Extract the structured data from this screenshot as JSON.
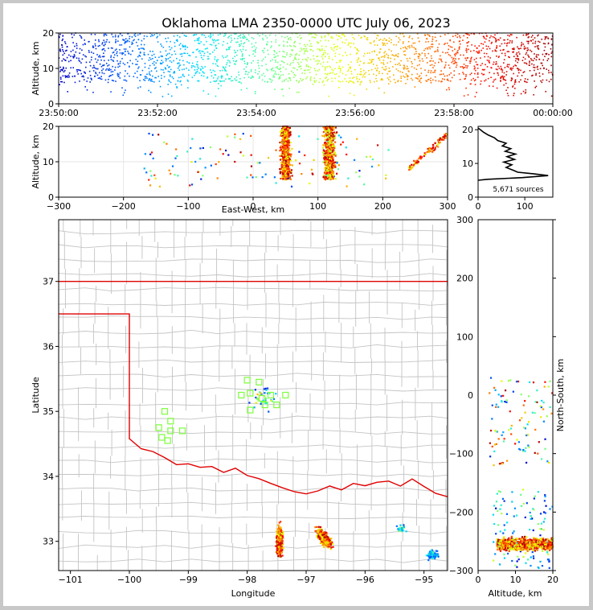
{
  "chart_data": [
    {
      "type": "scatter",
      "panel": "altitude-time",
      "title": "Oklahoma LMA 2350-0000 UTC July 06, 2023",
      "ylabel": "Altitude, km",
      "xlabel": "",
      "x_ticks": [
        "23:50:00",
        "23:52:00",
        "23:54:00",
        "23:56:00",
        "23:58:00",
        "00:00:00"
      ],
      "y_ticks": [
        "0",
        "10",
        "20"
      ],
      "xlim": [
        "23:50:00",
        "00:00:00"
      ],
      "ylim": [
        0,
        20
      ],
      "color_by": "time",
      "colormap": [
        "#0000c8",
        "#0060ff",
        "#00e0ff",
        "#60ff90",
        "#e8ff00",
        "#ff9000",
        "#ff1000",
        "#a00000"
      ],
      "altitude_band_km": [
        5,
        20
      ]
    },
    {
      "type": "scatter",
      "panel": "altitude-east-west",
      "xlabel": "East-West, km",
      "ylabel": "Altitude, km",
      "x_ticks": [
        "−300",
        "−200",
        "−100",
        "0",
        "100",
        "200",
        "300"
      ],
      "y_ticks": [
        "0",
        "10",
        "20"
      ],
      "xlim": [
        -300,
        300
      ],
      "ylim": [
        0,
        20
      ],
      "clusters_ew_km": [
        {
          "x_center": 50,
          "x_width": 12,
          "alt": [
            5,
            20
          ],
          "weight": 0.4
        },
        {
          "x_center": 118,
          "x_width": 14,
          "alt": [
            5,
            20
          ],
          "weight": 0.4
        },
        {
          "x_center": 280,
          "x_width": 25,
          "alt": [
            8,
            18
          ],
          "weight": 0.1
        }
      ]
    },
    {
      "type": "line",
      "panel": "altitude-histogram",
      "annotation": "5,671 sources",
      "x_ticks": [
        "0",
        "100"
      ],
      "y_ticks": [
        "0",
        "10",
        "20"
      ],
      "xlim": [
        0,
        160
      ],
      "ylim": [
        0,
        21
      ],
      "points": [
        [
          0,
          5
        ],
        [
          20,
          5.3
        ],
        [
          95,
          5.8
        ],
        [
          150,
          6.4
        ],
        [
          120,
          6.9
        ],
        [
          85,
          7.4
        ],
        [
          75,
          8
        ],
        [
          60,
          8.8
        ],
        [
          72,
          9.6
        ],
        [
          55,
          10.4
        ],
        [
          78,
          11.2
        ],
        [
          62,
          12
        ],
        [
          80,
          12.8
        ],
        [
          58,
          13.6
        ],
        [
          70,
          14.4
        ],
        [
          52,
          15.2
        ],
        [
          60,
          16
        ],
        [
          42,
          16.8
        ],
        [
          35,
          17.6
        ],
        [
          22,
          18.4
        ],
        [
          12,
          19.2
        ],
        [
          5,
          20
        ],
        [
          0,
          20.5
        ]
      ]
    },
    {
      "type": "scatter",
      "panel": "plan-view-map",
      "xlabel": "Longitude",
      "ylabel": "Latitude",
      "x_ticks": [
        "−101",
        "−100",
        "−99",
        "−98",
        "−97",
        "−96",
        "−95"
      ],
      "y_ticks": [
        "33",
        "34",
        "35",
        "36",
        "37"
      ],
      "xlim": [
        -101.2,
        -94.6
      ],
      "ylim": [
        32.55,
        37.95
      ],
      "stations": [
        [
          -99.4,
          35.0
        ],
        [
          -99.3,
          34.85
        ],
        [
          -99.5,
          34.75
        ],
        [
          -99.45,
          34.6
        ],
        [
          -99.35,
          34.55
        ],
        [
          -99.1,
          34.7
        ],
        [
          -99.3,
          34.7
        ],
        [
          -98.0,
          35.48
        ],
        [
          -97.8,
          35.45
        ],
        [
          -97.95,
          35.28
        ],
        [
          -97.75,
          35.2
        ],
        [
          -97.6,
          35.25
        ],
        [
          -97.5,
          35.1
        ],
        [
          -97.35,
          35.25
        ],
        [
          -98.1,
          35.25
        ],
        [
          -97.95,
          35.02
        ],
        [
          -97.7,
          35.1
        ]
      ]
    },
    {
      "type": "scatter",
      "panel": "altitude-north-south",
      "xlabel": "Altitude, km",
      "ylabel": "North-South, km",
      "x_ticks": [
        "0",
        "10",
        "20"
      ],
      "y_ticks": [
        "−300",
        "−200",
        "−100",
        "0",
        "100",
        "200",
        "300"
      ],
      "xlim": [
        0,
        20
      ],
      "ylim": [
        -300,
        300
      ]
    }
  ]
}
